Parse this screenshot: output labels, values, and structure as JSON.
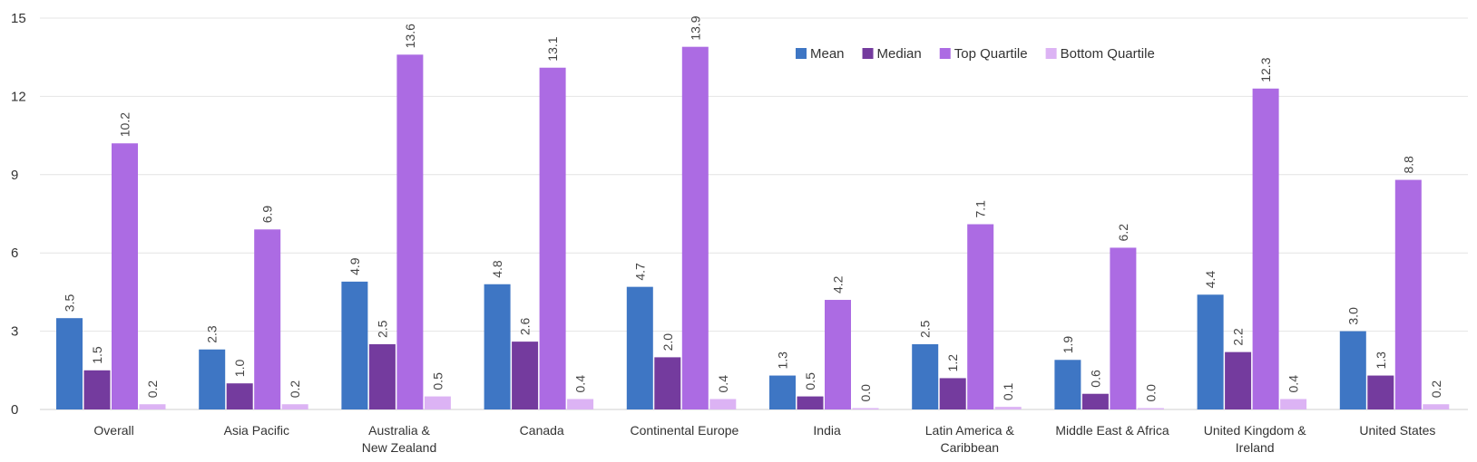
{
  "chart_data": {
    "type": "bar",
    "title": "",
    "xlabel": "",
    "ylabel": "",
    "ylim": [
      0,
      15
    ],
    "yticks": [
      0,
      3,
      6,
      9,
      12,
      15
    ],
    "grid": true,
    "legend_position": "top-right",
    "categories": [
      [
        "Overall"
      ],
      [
        "Asia Pacific"
      ],
      [
        "Australia &",
        "New Zealand"
      ],
      [
        "Canada"
      ],
      [
        "Continental Europe"
      ],
      [
        "India"
      ],
      [
        "Latin America &",
        "Caribbean"
      ],
      [
        "Middle East & Africa"
      ],
      [
        "United Kingdom &",
        "Ireland"
      ],
      [
        "United States"
      ]
    ],
    "series": [
      {
        "name": "Mean",
        "color": "#3e76c4",
        "values": [
          3.5,
          2.3,
          4.9,
          4.8,
          4.7,
          1.3,
          2.5,
          1.9,
          4.4,
          3.0
        ],
        "labels": [
          "3.5",
          "2.3",
          "4.9",
          "4.8",
          "4.7",
          "1.3",
          "2.5",
          "1.9",
          "4.4",
          "3.0"
        ]
      },
      {
        "name": "Median",
        "color": "#743b9e",
        "values": [
          1.5,
          1.0,
          2.5,
          2.6,
          2.0,
          0.5,
          1.2,
          0.6,
          2.2,
          1.3
        ],
        "labels": [
          "1.5",
          "1.0",
          "2.5",
          "2.6",
          "2.0",
          "0.5",
          "1.2",
          "0.6",
          "2.2",
          "1.3"
        ]
      },
      {
        "name": "Top Quartile",
        "color": "#ac6be3",
        "values": [
          10.2,
          6.9,
          13.6,
          13.1,
          13.9,
          4.2,
          7.1,
          6.2,
          12.3,
          8.8
        ],
        "labels": [
          "10.2",
          "6.9",
          "13.6",
          "13.1",
          "13.9",
          "4.2",
          "7.1",
          "6.2",
          "12.3",
          "8.8"
        ]
      },
      {
        "name": "Bottom Quartile",
        "color": "#dcb3f4",
        "values": [
          0.2,
          0.2,
          0.5,
          0.4,
          0.4,
          0.0,
          0.1,
          0.0,
          0.4,
          0.2
        ],
        "labels": [
          "0.2",
          "0.2",
          "0.5",
          "0.4",
          "0.4",
          "0.0",
          "0.1",
          "0.0",
          "0.4",
          "0.2"
        ]
      }
    ]
  }
}
